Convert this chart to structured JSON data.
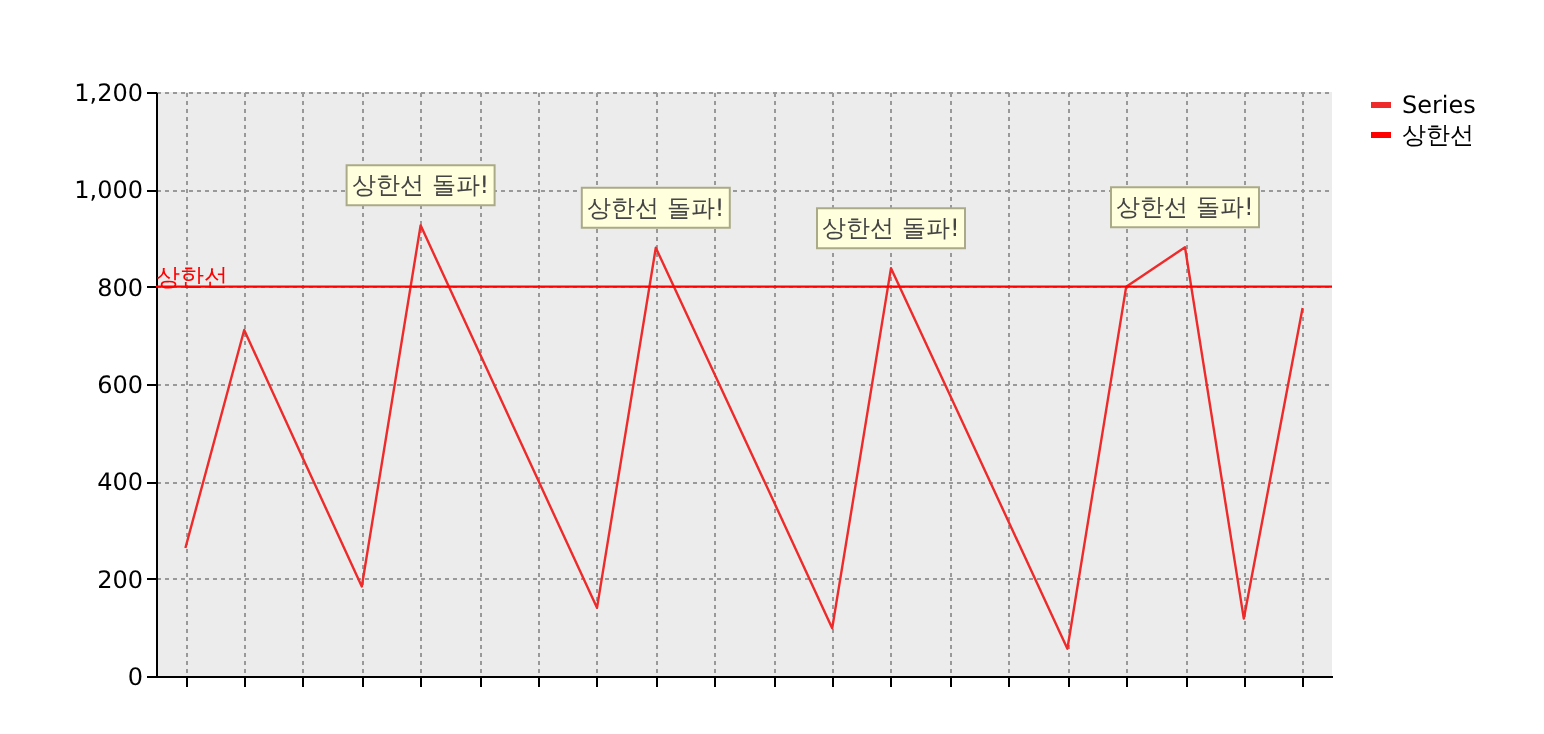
{
  "chart_data": {
    "type": "line",
    "categories": [
      null,
      null,
      null,
      null,
      null,
      null,
      null,
      null,
      null,
      null,
      null,
      null,
      null,
      null,
      null,
      null,
      null,
      null,
      null,
      null
    ],
    "series": [
      {
        "name": "Series",
        "color": "#ee2a2a",
        "values": [
          263,
          711,
          447,
          184,
          926,
          664,
          402,
          140,
          880,
          620,
          360,
          98,
          838,
          578,
          317,
          56,
          800,
          881,
          118,
          756
        ]
      }
    ],
    "ylim": [
      0,
      1200
    ],
    "yticks": [
      0,
      200,
      400,
      600,
      800,
      {
        "value": 1000,
        "label": "1,000"
      },
      {
        "value": 1200,
        "label": "1,200"
      }
    ],
    "grid": true,
    "legend": "top right",
    "marker": "none",
    "line_style": "solid",
    "ref_lines": [
      {
        "axis": "y",
        "value": 800,
        "label": "상한선",
        "color": "#ff0000"
      }
    ],
    "annotations": [
      {
        "text": "상한선 돌파!",
        "y": 926
      },
      {
        "text": "상한선 돌파!",
        "y": 880
      },
      {
        "text": "상한선 돌파!",
        "y": 838
      },
      {
        "text": "상한선 돌파!",
        "y": 881
      }
    ]
  }
}
